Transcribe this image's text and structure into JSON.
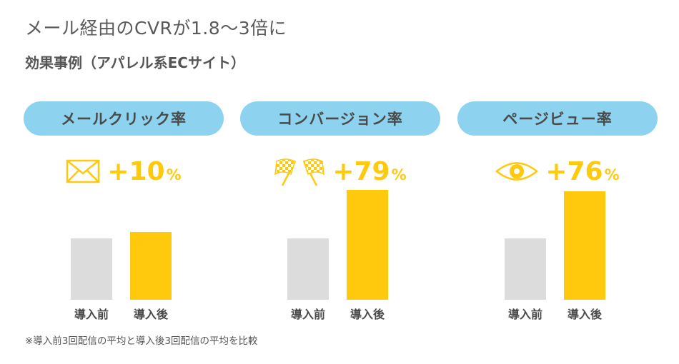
{
  "title": "メール経由のCVRが1.8〜3倍に",
  "subtitle": "効果事例（アパレル系ECサイト）",
  "footnote": "※導入前3回配信の平均と導入後3回配信の平均を比較",
  "colors": {
    "pill": "#8dd3ef",
    "accent": "#ffc90e",
    "before": "#dcdcdc",
    "after": "#ffc90e"
  },
  "panels": [
    {
      "label": "メールクリック率",
      "icon": "envelope-icon",
      "plus": "+",
      "number": "10",
      "unit": "%"
    },
    {
      "label": "コンバージョン率",
      "icon": "checkered-flags-icon",
      "plus": "+",
      "number": "79",
      "unit": "%"
    },
    {
      "label": "ページビュー率",
      "icon": "eye-icon",
      "plus": "+",
      "number": "76",
      "unit": "%"
    }
  ],
  "chart_data": [
    {
      "type": "bar",
      "title": "メールクリック率",
      "categories": [
        "導入前",
        "導入後"
      ],
      "values": [
        1.0,
        1.1
      ],
      "value_scale": "relative to 導入前 = 1.0"
    },
    {
      "type": "bar",
      "title": "コンバージョン率",
      "categories": [
        "導入前",
        "導入後"
      ],
      "values": [
        1.0,
        1.79
      ],
      "value_scale": "relative to 導入前 = 1.0"
    },
    {
      "type": "bar",
      "title": "ページビュー率",
      "categories": [
        "導入前",
        "導入後"
      ],
      "values": [
        1.0,
        1.76
      ],
      "value_scale": "relative to 導入前 = 1.0"
    }
  ]
}
